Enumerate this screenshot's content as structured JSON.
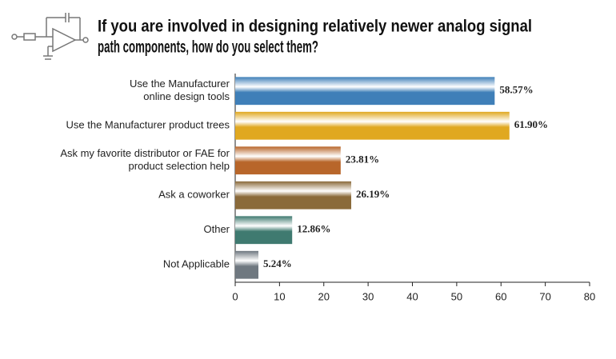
{
  "chart_data": {
    "type": "hbar",
    "title": [
      "If you are involved in designing relatively newer analog signal",
      "path components, how do you select them?"
    ],
    "categories": [
      [
        "Use the Manufacturer",
        "online design tools"
      ],
      [
        "Use the Manufacturer product trees"
      ],
      [
        "Ask my favorite distributor or FAE for",
        "product selection help"
      ],
      [
        "Ask a coworker"
      ],
      [
        "Other"
      ],
      [
        "Not Applicable"
      ]
    ],
    "values": [
      58.57,
      61.9,
      23.81,
      26.19,
      12.86,
      5.24
    ],
    "value_labels": [
      "58.57%",
      "61.90%",
      "23.81%",
      "26.19%",
      "12.86%",
      "5.24%"
    ],
    "colors": [
      "#3f7fb8",
      "#e0a820",
      "#b8662a",
      "#8a6a3a",
      "#3f7a70",
      "#6f7880"
    ],
    "xlim": [
      0,
      80
    ],
    "xticks": [
      0,
      10,
      20,
      30,
      40,
      50,
      60,
      70,
      80
    ]
  }
}
